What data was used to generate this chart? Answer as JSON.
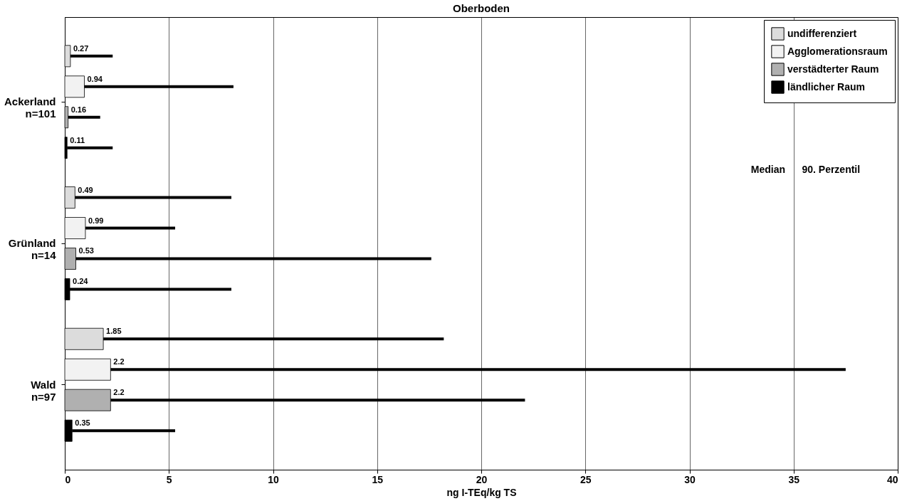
{
  "chart_data": {
    "type": "bar",
    "orientation": "horizontal",
    "title": "Oberboden",
    "xlabel": "ng I-TEq/kg TS",
    "categories": [
      "Ackerland n=101",
      "Grünland n=14",
      "Wald n=97"
    ],
    "series": [
      {
        "name": "undifferenziert",
        "color": "#dcdcdc",
        "values": [
          0.27,
          0.49,
          1.85
        ],
        "errors": [
          [
            0.27,
            2.3
          ],
          [
            0.49,
            8.0
          ],
          [
            1.85,
            18.2
          ]
        ]
      },
      {
        "name": "Agglomerationsraum",
        "color": "#f2f2f2",
        "values": [
          0.94,
          0.99,
          2.2
        ],
        "errors": [
          [
            0.94,
            8.1
          ],
          [
            0.99,
            5.3
          ],
          [
            2.2,
            37.5
          ]
        ]
      },
      {
        "name": "verstädterter Raum",
        "color": "#b0b0b0",
        "values": [
          0.16,
          0.53,
          2.2
        ],
        "errors": [
          [
            0.16,
            1.7
          ],
          [
            0.53,
            17.6
          ],
          [
            2.2,
            22.1
          ]
        ]
      },
      {
        "name": "ländlicher Raum",
        "color": "#000000",
        "values": [
          0.11,
          0.24,
          0.35
        ],
        "errors": [
          [
            0.11,
            2.3
          ],
          [
            0.24,
            8.0
          ],
          [
            0.35,
            5.3
          ]
        ]
      }
    ],
    "xlim": [
      0,
      40
    ],
    "xticks": [
      0,
      5,
      10,
      15,
      20,
      25,
      30,
      35,
      40
    ],
    "grid": "x",
    "legend": "top right",
    "data_labels": true,
    "annotations": [
      "Median",
      "90. Perzentil"
    ]
  }
}
